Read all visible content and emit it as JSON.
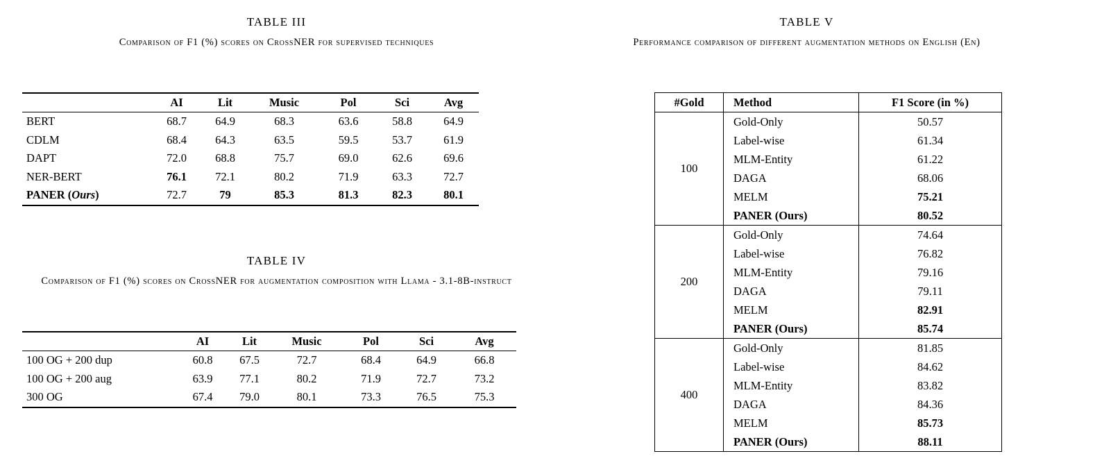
{
  "page": {
    "background": "#ffffff",
    "text_color": "#000000",
    "rule_color": "#000000"
  },
  "table3": {
    "title": "TABLE III",
    "caption": "Comparison of F1 (%) scores on CrossNER for supervised techniques",
    "row_header": "",
    "columns": [
      "AI",
      "Lit",
      "Music",
      "Pol",
      "Sci",
      "Avg"
    ],
    "rows": [
      {
        "label": "BERT",
        "label_bold": false,
        "ours_italic": false,
        "values": [
          "68.7",
          "64.9",
          "68.3",
          "63.6",
          "58.8",
          "64.9"
        ],
        "bold": [
          false,
          false,
          false,
          false,
          false,
          false
        ]
      },
      {
        "label": "CDLM",
        "label_bold": false,
        "ours_italic": false,
        "values": [
          "68.4",
          "64.3",
          "63.5",
          "59.5",
          "53.7",
          "61.9"
        ],
        "bold": [
          false,
          false,
          false,
          false,
          false,
          false
        ]
      },
      {
        "label": "DAPT",
        "label_bold": false,
        "ours_italic": false,
        "values": [
          "72.0",
          "68.8",
          "75.7",
          "69.0",
          "62.6",
          "69.6"
        ],
        "bold": [
          false,
          false,
          false,
          false,
          false,
          false
        ]
      },
      {
        "label": "NER-BERT",
        "label_bold": false,
        "ours_italic": false,
        "values": [
          "76.1",
          "72.1",
          "80.2",
          "71.9",
          "63.3",
          "72.7"
        ],
        "bold": [
          true,
          false,
          false,
          false,
          false,
          false
        ]
      },
      {
        "label": "PANER (Ours)",
        "label_bold": true,
        "ours_italic": true,
        "values": [
          "72.7",
          "79",
          "85.3",
          "81.3",
          "82.3",
          "80.1"
        ],
        "bold": [
          false,
          true,
          true,
          true,
          true,
          true
        ]
      }
    ]
  },
  "table4": {
    "title": "TABLE IV",
    "caption": "Comparison of F1 (%) scores on CrossNER for augmentation composition with Llama - 3.1-8B-instruct",
    "row_header": "",
    "columns": [
      "AI",
      "Lit",
      "Music",
      "Pol",
      "Sci",
      "Avg"
    ],
    "rows": [
      {
        "label": "100 OG + 200 dup",
        "label_bold": false,
        "ours_italic": false,
        "values": [
          "60.8",
          "67.5",
          "72.7",
          "68.4",
          "64.9",
          "66.8"
        ],
        "bold": [
          false,
          false,
          false,
          false,
          false,
          false
        ]
      },
      {
        "label": "100 OG + 200 aug",
        "label_bold": false,
        "ours_italic": false,
        "values": [
          "63.9",
          "77.1",
          "80.2",
          "71.9",
          "72.7",
          "73.2"
        ],
        "bold": [
          false,
          false,
          false,
          false,
          false,
          false
        ]
      },
      {
        "label": "300 OG",
        "label_bold": false,
        "ours_italic": false,
        "values": [
          "67.4",
          "79.0",
          "80.1",
          "73.3",
          "76.5",
          "75.3"
        ],
        "bold": [
          false,
          false,
          false,
          false,
          false,
          false
        ]
      }
    ]
  },
  "table5": {
    "title": "TABLE V",
    "caption": "Performance comparison of different augmentation methods on English (En)",
    "columns": [
      "#Gold",
      "Method",
      "F1 Score (in %)"
    ],
    "groups": [
      {
        "gold": "100",
        "rows": [
          {
            "method": "Gold-Only",
            "score": "50.57",
            "bold_method": false,
            "bold_score": false
          },
          {
            "method": "Label-wise",
            "score": "61.34",
            "bold_method": false,
            "bold_score": false
          },
          {
            "method": "MLM-Entity",
            "score": "61.22",
            "bold_method": false,
            "bold_score": false
          },
          {
            "method": "DAGA",
            "score": "68.06",
            "bold_method": false,
            "bold_score": false
          },
          {
            "method": "MELM",
            "score": "75.21",
            "bold_method": false,
            "bold_score": true
          },
          {
            "method": "PANER (Ours)",
            "score": "80.52",
            "bold_method": true,
            "bold_score": true
          }
        ]
      },
      {
        "gold": "200",
        "rows": [
          {
            "method": "Gold-Only",
            "score": "74.64",
            "bold_method": false,
            "bold_score": false
          },
          {
            "method": "Label-wise",
            "score": "76.82",
            "bold_method": false,
            "bold_score": false
          },
          {
            "method": "MLM-Entity",
            "score": "79.16",
            "bold_method": false,
            "bold_score": false
          },
          {
            "method": "DAGA",
            "score": "79.11",
            "bold_method": false,
            "bold_score": false
          },
          {
            "method": "MELM",
            "score": "82.91",
            "bold_method": false,
            "bold_score": true
          },
          {
            "method": "PANER (Ours)",
            "score": "85.74",
            "bold_method": true,
            "bold_score": true
          }
        ]
      },
      {
        "gold": "400",
        "rows": [
          {
            "method": "Gold-Only",
            "score": "81.85",
            "bold_method": false,
            "bold_score": false
          },
          {
            "method": "Label-wise",
            "score": "84.62",
            "bold_method": false,
            "bold_score": false
          },
          {
            "method": "MLM-Entity",
            "score": "83.82",
            "bold_method": false,
            "bold_score": false
          },
          {
            "method": "DAGA",
            "score": "84.36",
            "bold_method": false,
            "bold_score": false
          },
          {
            "method": "MELM",
            "score": "85.73",
            "bold_method": false,
            "bold_score": true
          },
          {
            "method": "PANER (Ours)",
            "score": "88.11",
            "bold_method": true,
            "bold_score": true
          }
        ]
      }
    ]
  }
}
